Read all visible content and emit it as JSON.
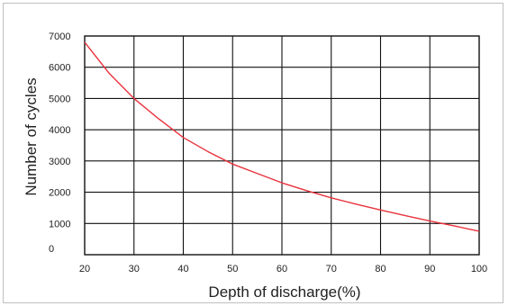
{
  "chart_data": {
    "type": "line",
    "xlabel": "Depth of discharge(%)",
    "ylabel": "Number of cycles",
    "xlim": [
      20,
      100
    ],
    "ylim": [
      0,
      7000
    ],
    "x_ticks": [
      "20",
      "30",
      "40",
      "50",
      "60",
      "70",
      "80",
      "90",
      "100"
    ],
    "y_ticks": [
      "7000",
      "6000",
      "5000",
      "4000",
      "3000",
      "2000",
      "1000",
      "0"
    ],
    "grid": true,
    "series": [
      {
        "color": "#e8323c",
        "x": [
          20,
          25,
          30,
          35,
          40,
          45,
          50,
          55,
          60,
          65,
          70,
          75,
          80,
          85,
          90,
          95,
          100
        ],
        "y": [
          6800,
          5800,
          5000,
          4350,
          3750,
          3300,
          2900,
          2600,
          2300,
          2050,
          1820,
          1620,
          1430,
          1250,
          1080,
          920,
          750
        ]
      }
    ]
  }
}
